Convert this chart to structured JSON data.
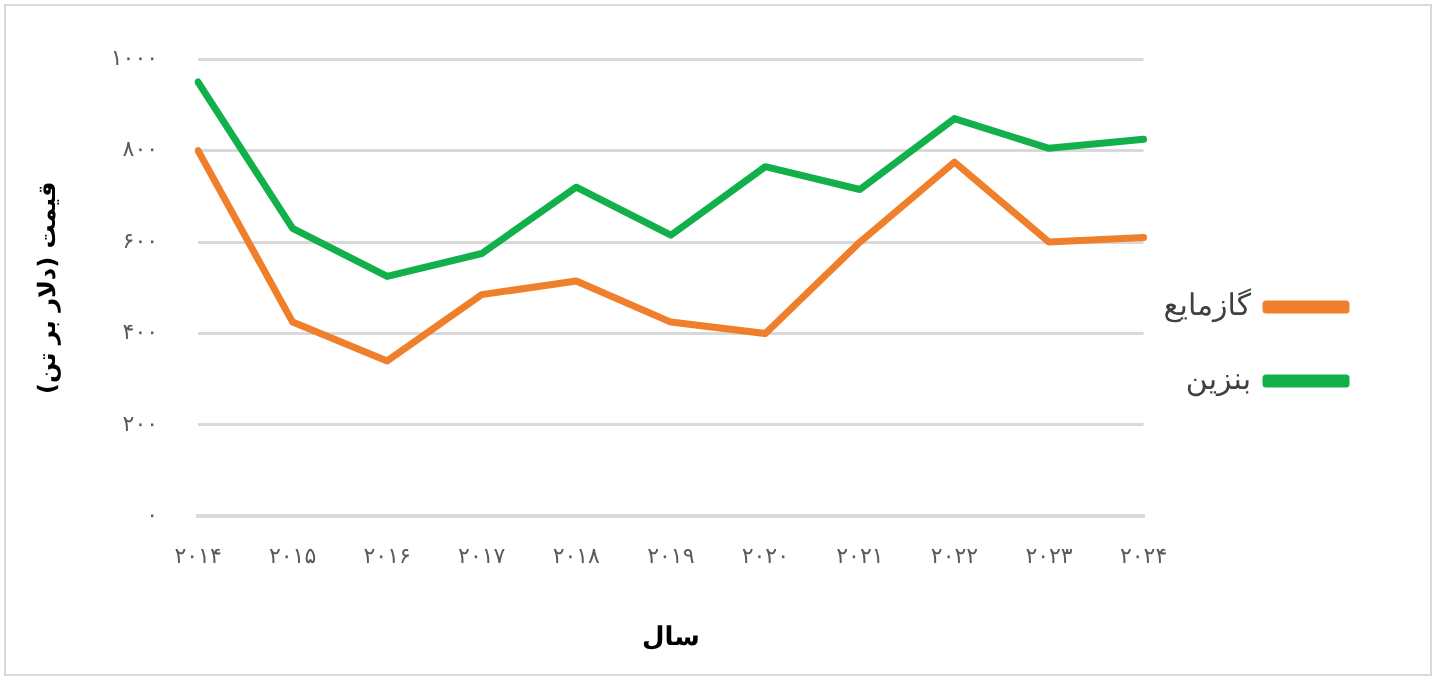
{
  "chart_data": {
    "type": "line",
    "xlabel": "سال",
    "ylabel": "قیمت (دلار بر تن)",
    "categories": [
      "۲۰۱۴",
      "۲۰۱۵",
      "۲۰۱۶",
      "۲۰۱۷",
      "۲۰۱۸",
      "۲۰۱۹",
      "۲۰۲۰",
      "۲۰۲۱",
      "۲۰۲۲",
      "۲۰۲۳",
      "۲۰۲۴"
    ],
    "series": [
      {
        "name": "گازمایع",
        "color": "#f07f2b",
        "values": [
          800,
          425,
          340,
          485,
          515,
          425,
          400,
          600,
          775,
          600,
          610
        ]
      },
      {
        "name": "بنزین",
        "color": "#12b04a",
        "values": [
          950,
          630,
          525,
          575,
          720,
          615,
          765,
          715,
          870,
          805,
          825
        ]
      }
    ],
    "ylim": [
      0,
      1000
    ],
    "yticks": [
      {
        "value": 0,
        "label": "۰"
      },
      {
        "value": 200,
        "label": "۲۰۰"
      },
      {
        "value": 400,
        "label": "۴۰۰"
      },
      {
        "value": 600,
        "label": "۶۰۰"
      },
      {
        "value": 800,
        "label": "۸۰۰"
      },
      {
        "value": 1000,
        "label": "۱۰۰۰"
      }
    ],
    "grid": "y",
    "legend": "right",
    "marker": "none",
    "line_style": "solid"
  }
}
